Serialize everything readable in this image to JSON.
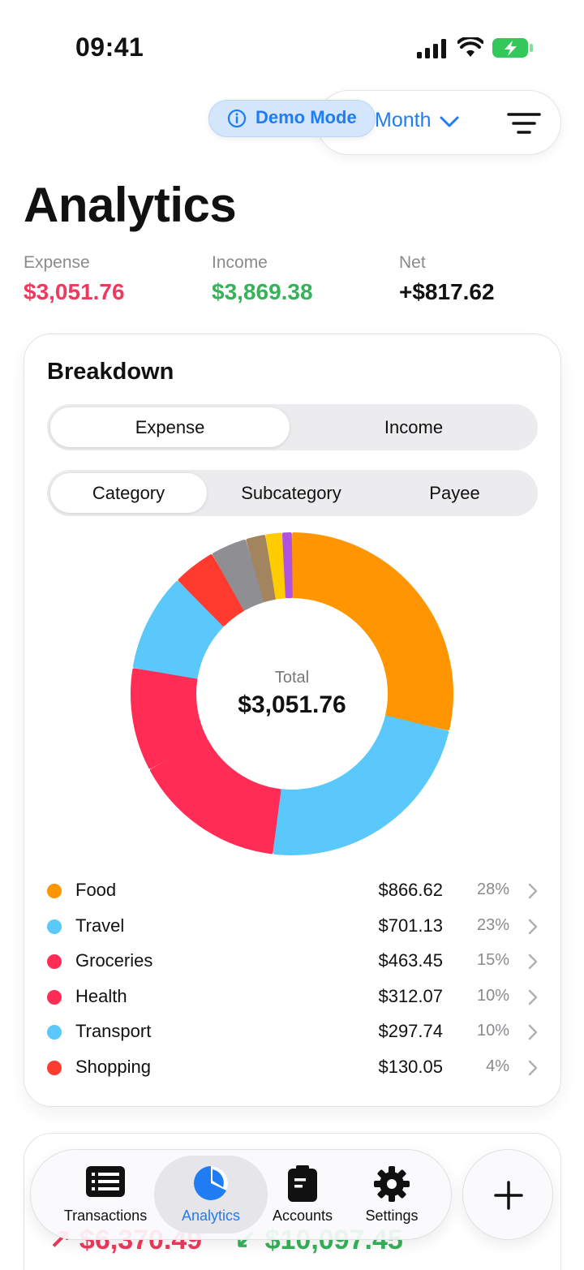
{
  "status_bar": {
    "time": "09:41"
  },
  "toolbar": {
    "period_label": "Month",
    "demo_label": "Demo Mode"
  },
  "page": {
    "title": "Analytics"
  },
  "summary": {
    "expense": {
      "label": "Expense",
      "value": "$3,051.76"
    },
    "income": {
      "label": "Income",
      "value": "$3,869.38"
    },
    "net": {
      "label": "Net",
      "value": "+$817.62"
    }
  },
  "breakdown": {
    "title": "Breakdown",
    "type_tabs": [
      "Expense",
      "Income"
    ],
    "group_tabs": [
      "Category",
      "Subcategory",
      "Payee"
    ],
    "total_label": "Total",
    "total_value": "$3,051.76",
    "items": [
      {
        "name": "Food",
        "amount": "$866.62",
        "percent": "28%",
        "color": "#ff9500"
      },
      {
        "name": "Travel",
        "amount": "$701.13",
        "percent": "23%",
        "color": "#5ac8fa"
      },
      {
        "name": "Groceries",
        "amount": "$463.45",
        "percent": "15%",
        "color": "#ff2d55"
      },
      {
        "name": "Health",
        "amount": "$312.07",
        "percent": "10%",
        "color": "#ff2d55"
      },
      {
        "name": "Transport",
        "amount": "$297.74",
        "percent": "10%",
        "color": "#5ac8fa"
      },
      {
        "name": "Shopping",
        "amount": "$130.05",
        "percent": "4%",
        "color": "#ff3b30"
      }
    ]
  },
  "chart_data": {
    "type": "pie",
    "categories": [
      "Food",
      "Travel",
      "Groceries",
      "Health",
      "Transport",
      "Shopping",
      "",
      "",
      "",
      ""
    ],
    "values": [
      866.62,
      701.13,
      463.45,
      312.07,
      297.74,
      130.05,
      110,
      60,
      50,
      30
    ],
    "colors": [
      "#ff9500",
      "#5ac8fa",
      "#ff2d55",
      "#ff2d55",
      "#5ac8fa",
      "#ff3b30",
      "#8e8e93",
      "#a2845e",
      "#ffcc00",
      "#af52de"
    ]
  },
  "next_card": {
    "expense": "↗ $6,370.49",
    "income": "↙ $10,097.45"
  },
  "tab_bar": {
    "tabs": [
      {
        "label": "Transactions",
        "icon": "list-icon"
      },
      {
        "label": "Analytics",
        "icon": "pie-chart-icon"
      },
      {
        "label": "Accounts",
        "icon": "wallet-icon"
      },
      {
        "label": "Settings",
        "icon": "gear-icon"
      }
    ],
    "active": "Analytics",
    "accent": "#1f7cf2"
  }
}
